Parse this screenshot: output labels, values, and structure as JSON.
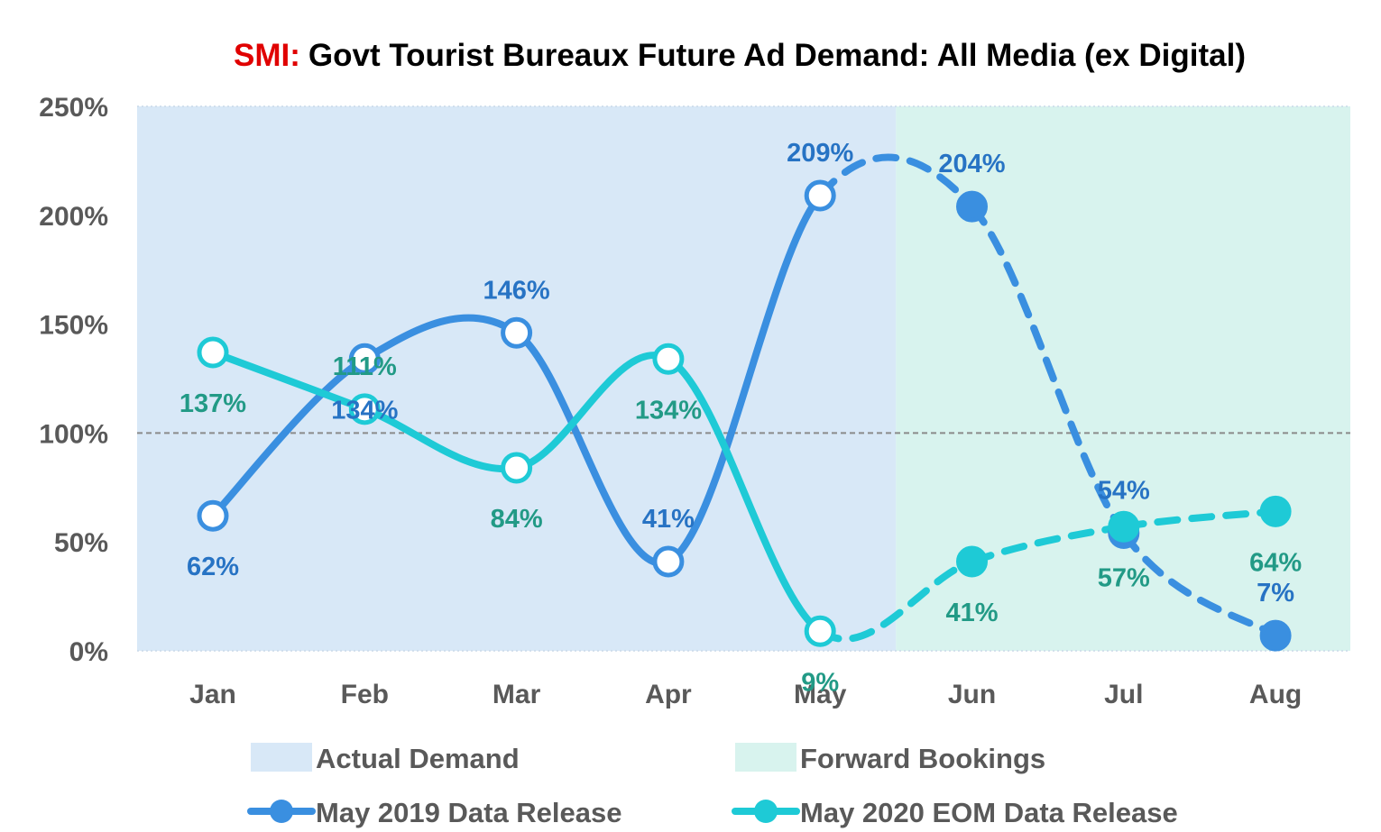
{
  "colors": {
    "series_2019": "#3a8fe0",
    "series_2019_label": "#2773c4",
    "series_2020": "#1ecad6",
    "series_2020_label": "#229a86",
    "actual_band": "#d8e8f7",
    "forward_band": "#d8f3ee",
    "title_prefix": "#e00000",
    "title": "#000000",
    "ref_line": "#8a8a8a"
  },
  "chart_data": {
    "type": "line",
    "title_prefix": "SMI:",
    "title": "Govt Tourist Bureaux Future Ad Demand: All Media (ex Digital)",
    "categories": [
      "Jan",
      "Feb",
      "Mar",
      "Apr",
      "May",
      "Jun",
      "Jul",
      "Aug"
    ],
    "ylim": [
      0,
      250
    ],
    "yticks": [
      0,
      50,
      100,
      150,
      200,
      250
    ],
    "ytick_labels": [
      "0%",
      "50%",
      "100%",
      "150%",
      "200%",
      "250%"
    ],
    "reference_line": 100,
    "bands": [
      {
        "name": "Actual Demand",
        "from_index": 0,
        "to_index": 4.5,
        "color_key": "actual_band"
      },
      {
        "name": "Forward Bookings",
        "from_index": 4.5,
        "to_index": 7,
        "color_key": "forward_band"
      }
    ],
    "series": [
      {
        "name": "May 2019 Data Release",
        "color_key": "series_2019",
        "label_color_key": "series_2019_label",
        "values": [
          62,
          134,
          146,
          41,
          209,
          204,
          54,
          7
        ],
        "labels": [
          "62%",
          "134%",
          "146%",
          "41%",
          "209%",
          "204%",
          "54%",
          "7%"
        ],
        "label_pos": [
          "below",
          "below",
          "above",
          "above",
          "above",
          "above",
          "above",
          "above"
        ],
        "actual_through_index": 4
      },
      {
        "name": "May 2020 EOM Data Release",
        "color_key": "series_2020",
        "label_color_key": "series_2020_label",
        "values": [
          137,
          111,
          84,
          134,
          9,
          41,
          57,
          64
        ],
        "labels": [
          "137%",
          "111%",
          "84%",
          "134%",
          "9%",
          "41%",
          "57%",
          "64%"
        ],
        "label_pos": [
          "below",
          "above",
          "below",
          "below",
          "below",
          "below",
          "below",
          "below"
        ],
        "actual_through_index": 4
      }
    ],
    "legend": {
      "items": [
        "Actual Demand",
        "Forward Bookings",
        "May 2019 Data Release",
        "May 2020 EOM Data Release"
      ]
    }
  }
}
